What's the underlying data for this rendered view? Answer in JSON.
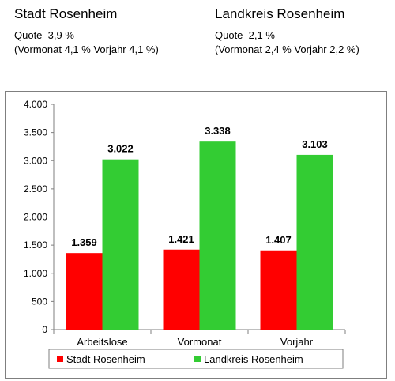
{
  "header": {
    "left": {
      "title": "Stadt Rosenheim",
      "quote": "Quote  3,9 %",
      "compare": "(Vormonat 4,1 % Vorjahr 4,1 %)"
    },
    "right": {
      "title": "Landkreis Rosenheim",
      "quote": "Quote  2,1 %",
      "compare": "(Vormonat 2,4 % Vorjahr 2,2 %)"
    }
  },
  "chart_data": {
    "type": "bar",
    "categories": [
      "Arbeitslose",
      "Vormonat",
      "Vorjahr"
    ],
    "series": [
      {
        "name": "Stadt Rosenheim",
        "color": "#ff0000",
        "values": [
          1359,
          1421,
          1407
        ],
        "labels": [
          "1.359",
          "1.421",
          "1.407"
        ]
      },
      {
        "name": "Landkreis Rosenheim",
        "color": "#33cc33",
        "values": [
          3022,
          3338,
          3103
        ],
        "labels": [
          "3.022",
          "3.338",
          "3.103"
        ]
      }
    ],
    "ylim": [
      0,
      4000
    ],
    "yticks": [
      0,
      500,
      1000,
      1500,
      2000,
      2500,
      3000,
      3500,
      4000
    ],
    "ytick_labels": [
      "0",
      "500",
      "1.000",
      "1.500",
      "2.000",
      "2.500",
      "3.000",
      "3.500",
      "4.000"
    ],
    "legend_position": "bottom",
    "grid": false,
    "title": "",
    "xlabel": "",
    "ylabel": ""
  }
}
